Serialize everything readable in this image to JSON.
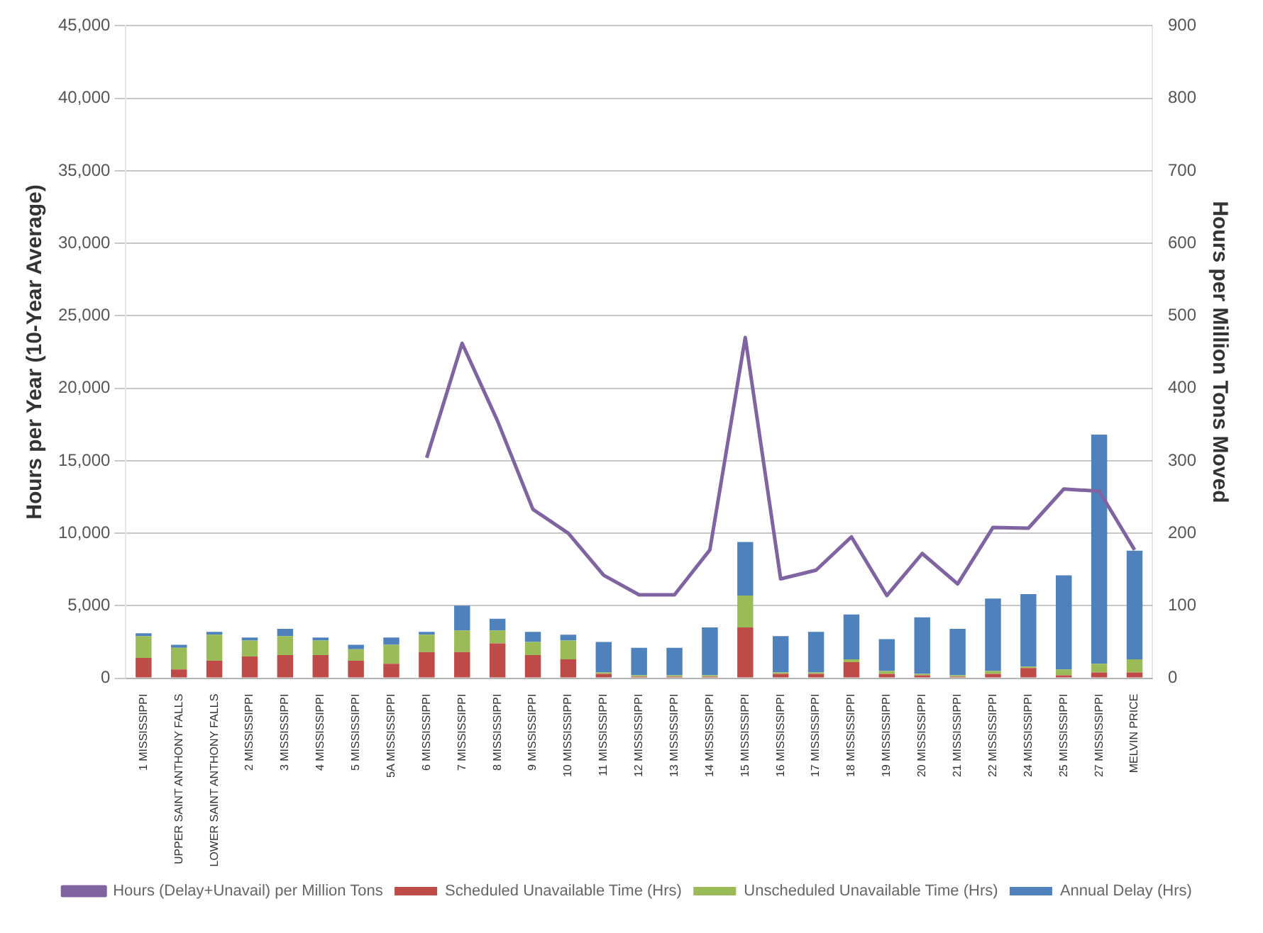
{
  "chart_data": {
    "type": "bar",
    "stacked": true,
    "ylabel": "Hours per Year (10-Year Average)",
    "y2label": "Hours per Million Tons Moved",
    "categories": [
      "1 MISSISSIPPI",
      "UPPER SAINT ANTHONY FALLS",
      "LOWER SAINT ANTHONY FALLS",
      "2 MISSISSIPPI",
      "3 MISSISSIPPI",
      "4 MISSISSIPPI",
      "5 MISSISSIPPI",
      "5A MISSISSIPPI",
      "6 MISSISSIPPI",
      "7 MISSISSIPPI",
      "8 MISSISSIPPI",
      "9 MISSISSIPPI",
      "10 MISSISSIPPI",
      "11 MISSISSIPPI",
      "12 MISSISSIPPI",
      "13 MISSISSIPPI",
      "14 MISSISSIPPI",
      "15 MISSISSIPPI",
      "16 MISSISSIPPI",
      "17 MISSISSIPPI",
      "18 MISSISSIPPI",
      "19 MISSISSIPPI",
      "20 MISSISSIPPI",
      "21 MISSISSIPPI",
      "22 MISSISSIPPI",
      "24 MISSISSIPPI",
      "25 MISSISSIPPI",
      "27 MISSISSIPPI",
      "MELVIN PRICE"
    ],
    "series": [
      {
        "name": "Scheduled Unavailable Time (Hrs)",
        "color": "#be4b48",
        "values": [
          1400,
          600,
          1200,
          1500,
          1600,
          1600,
          1200,
          1000,
          1800,
          1800,
          2400,
          1600,
          1300,
          300,
          100,
          100,
          100,
          3500,
          300,
          300,
          1100,
          300,
          200,
          100,
          300,
          700,
          200,
          400,
          400
        ]
      },
      {
        "name": "Unscheduled Unavailable Time (Hrs)",
        "color": "#9bbb59",
        "values": [
          1500,
          1500,
          1800,
          1100,
          1300,
          1000,
          800,
          1300,
          1200,
          1500,
          900,
          900,
          1300,
          100,
          100,
          100,
          100,
          2200,
          100,
          100,
          200,
          200,
          100,
          100,
          200,
          100,
          400,
          600,
          900
        ]
      },
      {
        "name": "Annual Delay (Hrs)",
        "color": "#4f81bd",
        "values": [
          200,
          200,
          200,
          200,
          500,
          200,
          300,
          500,
          200,
          1700,
          800,
          700,
          400,
          2100,
          1900,
          1900,
          3300,
          3700,
          2500,
          2800,
          3100,
          2200,
          3900,
          3200,
          5000,
          5000,
          6500,
          15800,
          7500
        ]
      },
      {
        "name": "Hours (Delay+Unavail) per Million Tons",
        "color": "#8064a2",
        "type": "line",
        "axis": "y2",
        "values": [
          null,
          null,
          null,
          null,
          null,
          null,
          null,
          null,
          304,
          462,
          355,
          233,
          200,
          142,
          115,
          115,
          177,
          470,
          137,
          149,
          195,
          114,
          172,
          130,
          208,
          207,
          261,
          258,
          177
        ]
      }
    ],
    "ylim": [
      0,
      45000
    ],
    "yticks": [
      0,
      {
        "value": 5000,
        "label": "5,000"
      },
      {
        "value": 10000,
        "label": "10,000"
      },
      {
        "value": 15000,
        "label": "15,000"
      },
      {
        "value": 20000,
        "label": "20,000"
      },
      {
        "value": 25000,
        "label": "25,000"
      },
      {
        "value": 30000,
        "label": "30,000"
      },
      {
        "value": 35000,
        "label": "35,000"
      },
      {
        "value": 40000,
        "label": "40,000"
      },
      {
        "value": 45000,
        "label": "45,000"
      }
    ],
    "y2lim": [
      0,
      900
    ],
    "y2ticks": [
      0,
      100,
      200,
      300,
      400,
      500,
      600,
      700,
      800,
      900
    ],
    "grid": "y",
    "legend": "bottom"
  }
}
